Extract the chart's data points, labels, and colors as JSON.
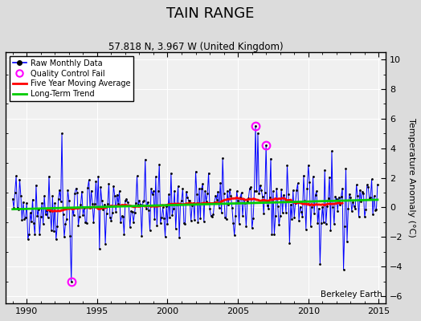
{
  "title": "TAIN RANGE",
  "subtitle": "57.818 N, 3.967 W (United Kingdom)",
  "ylabel": "Temperature Anomaly (°C)",
  "attribution": "Berkeley Earth",
  "xlim": [
    1988.5,
    2015.5
  ],
  "ylim": [
    -6.5,
    10.5
  ],
  "yticks": [
    -6,
    -4,
    -2,
    0,
    2,
    4,
    6,
    8,
    10
  ],
  "xticks": [
    1990,
    1995,
    2000,
    2005,
    2010,
    2015
  ],
  "bg_color": "#dcdcdc",
  "plot_bg_color": "#f0f0f0",
  "raw_color": "#0000ff",
  "moving_avg_color": "#ff0000",
  "trend_color": "#00cc00",
  "qc_fail_color": "#ff00ff",
  "grid_color": "#ffffff",
  "seed": 42
}
